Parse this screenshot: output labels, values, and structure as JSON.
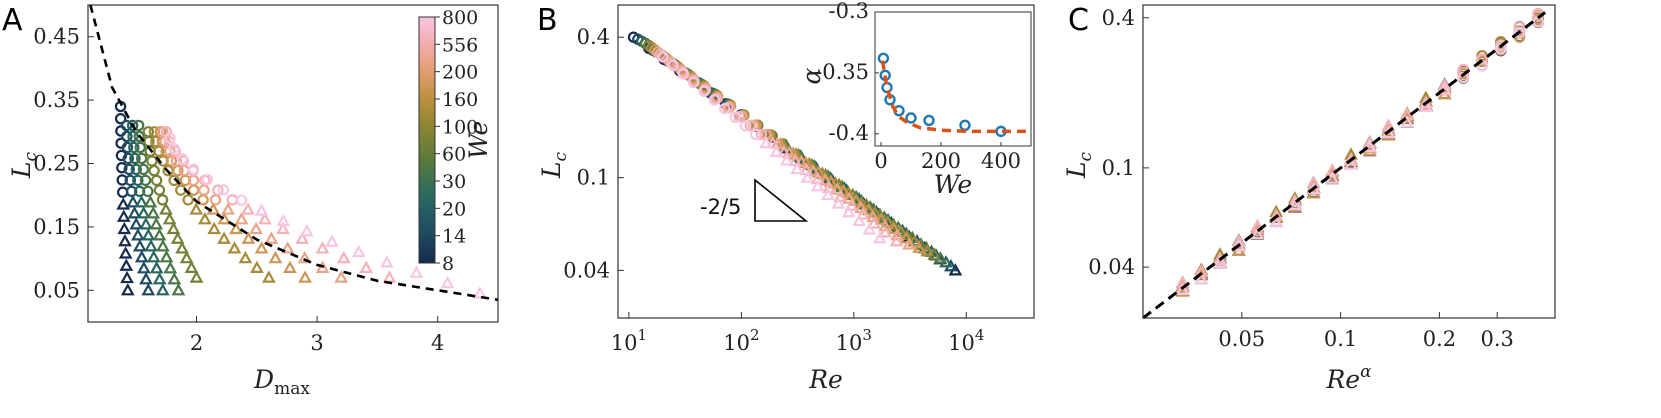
{
  "figure": {
    "panels": [
      "A",
      "B",
      "C"
    ]
  },
  "colors": {
    "palette": [
      "#172a4e",
      "#1f4f63",
      "#2a6b5e",
      "#5a7a3c",
      "#8f8632",
      "#c09142",
      "#e8a07a",
      "#f4aeb1",
      "#f7c6e4"
    ],
    "fit_line": "#000000",
    "inset_points": "#1f77b4",
    "inset_fit": "#d95319"
  },
  "chart_data": [
    {
      "panel": "A",
      "type": "scatter",
      "xlabel": "D",
      "xlabel_sub": "max",
      "ylabel": "L",
      "ylabel_sub": "c",
      "xlim": [
        1.1,
        4.5
      ],
      "ylim": [
        0.0,
        0.5
      ],
      "xticks": [
        2,
        3,
        4
      ],
      "xtick_labels": [
        "2",
        "3",
        "4"
      ],
      "yticks": [
        0.05,
        0.15,
        0.25,
        0.35,
        0.45
      ],
      "ytick_labels": [
        "0.05",
        "0.15",
        "0.25",
        "0.35",
        "0.45"
      ],
      "fit_curve": {
        "style": "dashed",
        "x": [
          1.12,
          1.3,
          1.5,
          1.75,
          2.0,
          2.5,
          3.0,
          3.5,
          4.0,
          4.5
        ],
        "y": [
          0.5,
          0.37,
          0.3,
          0.24,
          0.19,
          0.13,
          0.09,
          0.065,
          0.05,
          0.035
        ]
      },
      "colorbar": {
        "label": "We",
        "tick_labels": [
          "800",
          "556",
          "200",
          "160",
          "100",
          "60",
          "30",
          "20",
          "14",
          "8"
        ],
        "location": "inside-top-right"
      },
      "series": [
        {
          "We": 8,
          "x_start": 1.37,
          "y_start": 0.34,
          "x_end": 1.43,
          "y_end": 0.05
        },
        {
          "We": 14,
          "x_start": 1.42,
          "y_start": 0.31,
          "x_end": 1.6,
          "y_end": 0.05
        },
        {
          "We": 20,
          "x_start": 1.47,
          "y_start": 0.31,
          "x_end": 1.72,
          "y_end": 0.05
        },
        {
          "We": 30,
          "x_start": 1.52,
          "y_start": 0.31,
          "x_end": 1.85,
          "y_end": 0.05
        },
        {
          "We": 60,
          "x_start": 1.6,
          "y_start": 0.3,
          "x_end": 2.0,
          "y_end": 0.07
        },
        {
          "We": 100,
          "x_start": 1.65,
          "y_start": 0.3,
          "x_end": 2.6,
          "y_end": 0.07
        },
        {
          "We": 160,
          "x_start": 1.7,
          "y_start": 0.3,
          "x_end": 2.9,
          "y_end": 0.07
        },
        {
          "We": 200,
          "x_start": 1.72,
          "y_start": 0.3,
          "x_end": 3.2,
          "y_end": 0.07
        },
        {
          "We": 556,
          "x_start": 1.75,
          "y_start": 0.3,
          "x_end": 3.6,
          "y_end": 0.07
        },
        {
          "We": 800,
          "x_start": 1.78,
          "y_start": 0.29,
          "x_end": 4.35,
          "y_end": 0.045
        }
      ]
    },
    {
      "panel": "B",
      "type": "scatter",
      "scale": "log-log",
      "xlabel": "Re",
      "ylabel": "L",
      "ylabel_sub": "c",
      "xlim": [
        8,
        40000
      ],
      "ylim": [
        0.025,
        0.55
      ],
      "xtick_labels": [
        "10",
        "10",
        "10",
        "10"
      ],
      "xtick_exponents": [
        "1",
        "2",
        "3",
        "4"
      ],
      "xticks": [
        10,
        100,
        1000,
        10000
      ],
      "yticks": [
        0.04,
        0.1,
        0.4
      ],
      "ytick_labels": [
        "0.04",
        "0.1",
        "0.4"
      ],
      "slope_triangle_label": "-2/5",
      "series": [
        {
          "We": 8,
          "x_start": 11,
          "y_start": 0.4,
          "x_end": 8000,
          "y_end": 0.04
        },
        {
          "We": 30,
          "x_start": 13,
          "y_start": 0.39,
          "x_end": 6000,
          "y_end": 0.043
        },
        {
          "We": 100,
          "x_start": 16,
          "y_start": 0.37,
          "x_end": 3500,
          "y_end": 0.048
        },
        {
          "We": 200,
          "x_start": 18,
          "y_start": 0.35,
          "x_end": 2500,
          "y_end": 0.05
        },
        {
          "We": 800,
          "x_start": 20,
          "y_start": 0.33,
          "x_end": 1700,
          "y_end": 0.055
        }
      ],
      "inset": {
        "type": "scatter",
        "xlabel": "We",
        "ylabel": "α",
        "xlim": [
          -20,
          500
        ],
        "ylim": [
          -0.41,
          -0.3
        ],
        "xticks": [
          0,
          200,
          400
        ],
        "xtick_labels": [
          "0",
          "200",
          "400"
        ],
        "yticks": [
          -0.3,
          -0.35,
          -0.4
        ],
        "ytick_labels": [
          "-0.3",
          "-0.35",
          "-0.4"
        ],
        "points": [
          {
            "We": 8,
            "alpha": -0.338
          },
          {
            "We": 14,
            "alpha": -0.352
          },
          {
            "We": 20,
            "alpha": -0.362
          },
          {
            "We": 30,
            "alpha": -0.372
          },
          {
            "We": 60,
            "alpha": -0.381
          },
          {
            "We": 100,
            "alpha": -0.387
          },
          {
            "We": 160,
            "alpha": -0.389
          },
          {
            "We": 280,
            "alpha": -0.393
          },
          {
            "We": 400,
            "alpha": -0.398
          }
        ],
        "fit_curve": {
          "style": "dashed",
          "We": [
            5,
            20,
            40,
            60,
            90,
            130,
            200,
            300,
            400,
            500
          ],
          "alpha": [
            -0.34,
            -0.362,
            -0.378,
            -0.386,
            -0.391,
            -0.395,
            -0.397,
            -0.398,
            -0.398,
            -0.398
          ]
        }
      }
    },
    {
      "panel": "C",
      "type": "scatter",
      "scale": "log-log",
      "xlabel": "Re",
      "xlabel_sup": "α",
      "ylabel": "L",
      "ylabel_sub": "c",
      "xlim": [
        0.025,
        0.45
      ],
      "ylim": [
        0.025,
        0.45
      ],
      "xticks": [
        0.05,
        0.1,
        0.2,
        0.3
      ],
      "xtick_labels": [
        "0.05",
        "0.1",
        "0.2",
        "0.3"
      ],
      "yticks": [
        0.04,
        0.1,
        0.4
      ],
      "ytick_labels": [
        "0.04",
        "0.1",
        "0.4"
      ],
      "fit_line": {
        "style": "dashed",
        "x": [
          0.025,
          0.42
        ],
        "y": [
          0.025,
          0.42
        ]
      },
      "collapse_range": {
        "x_start": 0.033,
        "x_end": 0.4
      }
    }
  ]
}
